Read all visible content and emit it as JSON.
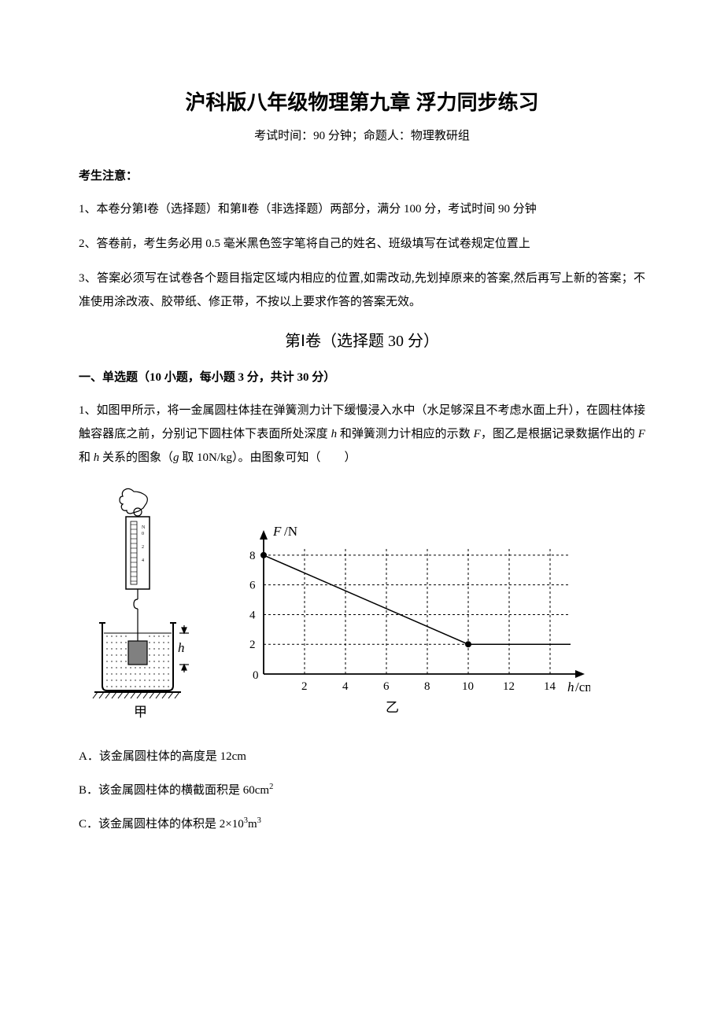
{
  "title": "沪科版八年级物理第九章 浮力同步练习",
  "subtitle": "考试时间：90 分钟；命题人：物理教研组",
  "notice_head": "考生注意：",
  "notices": [
    "1、本卷分第Ⅰ卷（选择题）和第Ⅱ卷（非选择题）两部分，满分 100 分，考试时间 90 分钟",
    "2、答卷前，考生务必用 0.5 毫米黑色签字笔将自己的姓名、班级填写在试卷规定位置上",
    "3、答案必须写在试卷各个题目指定区域内相应的位置,如需改动,先划掉原来的答案,然后再写上新的答案；不准使用涂改液、胶带纸、修正带，不按以上要求作答的答案无效。"
  ],
  "section1": "第Ⅰ卷（选择题  30 分）",
  "part_head": "一、单选题（10 小题，每小题 3 分，共计 30 分）",
  "q1": {
    "stem_a": "1、如图甲所示，将一金属圆柱体挂在弹簧测力计下缓慢浸入水中（水足够深且不考虑水面上升），在圆柱体接触容器底之前，分别记下圆柱体下表面所处深度 ",
    "var_h": "h",
    "stem_b": " 和弹簧测力计相应的示数 ",
    "var_F": "F",
    "stem_c": "，图乙是根据记录数据作出的 ",
    "stem_d": " 和 ",
    "stem_e": " 关系的图象（",
    "var_g": "g",
    "stem_f": " 取 10N/kg）。由图象可知（　　）",
    "options": {
      "A": "A．该金属圆柱体的高度是 12cm",
      "B": "B．该金属圆柱体的横截面积是 60cm",
      "B_sup": "2",
      "C": "C．该金属圆柱体的体积是 2×10",
      "C_sup1": "3",
      "C_unit": "m",
      "C_sup2": "3"
    }
  },
  "figure": {
    "jia_label": "甲",
    "yi_label": "乙",
    "chart": {
      "type": "line",
      "y_label": "F/N",
      "x_label": "h/cm",
      "x_ticks": [
        2,
        4,
        6,
        8,
        10,
        12,
        14
      ],
      "y_ticks": [
        0,
        2,
        4,
        6,
        8
      ],
      "xlim": [
        0,
        15
      ],
      "ylim": [
        0,
        9
      ],
      "grid_color": "#000000",
      "grid_dash": "3,3",
      "axis_color": "#000000",
      "line_color": "#000000",
      "line_width": 1.5,
      "marker_color": "#000000",
      "marker_radius": 4,
      "data_points": [
        {
          "x": 0,
          "y": 8
        },
        {
          "x": 10,
          "y": 2
        },
        {
          "x": 15,
          "y": 2
        }
      ],
      "label_fontsize": 15,
      "tick_fontsize": 15,
      "font_family": "Times New Roman"
    },
    "apparatus": {
      "spring_body_fill": "#ffffff",
      "cylinder_fill": "#808080",
      "beaker_stroke": "#000000",
      "water_dot_color": "#000000",
      "hatch_color": "#000000",
      "h_label": "h"
    }
  }
}
